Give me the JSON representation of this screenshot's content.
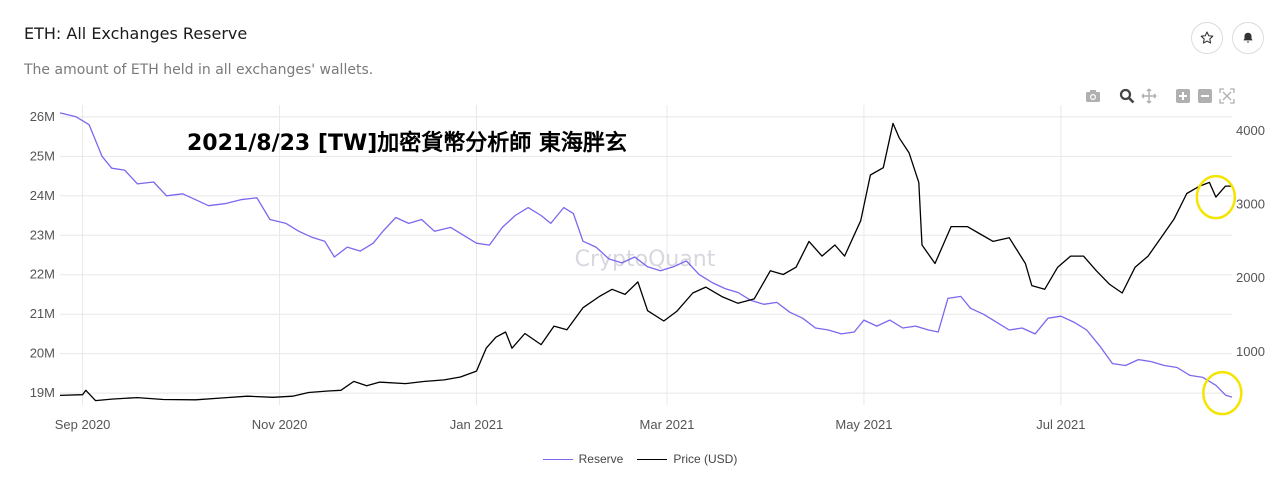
{
  "header": {
    "title": "ETH: All Exchanges Reserve",
    "subtitle": "The amount of ETH held in all exchanges' wallets.",
    "star_icon": "star-icon",
    "bell_icon": "bell-icon"
  },
  "modebar": {
    "icons": [
      "camera-icon",
      "zoom-icon",
      "pan-icon",
      "zoom-in-icon",
      "zoom-out-icon",
      "autoscale-icon"
    ]
  },
  "annotation": "2021/8/23 [TW]加密貨幣分析師 東海胖玄",
  "watermark": "CryptoQuant",
  "colors": {
    "reserve": "#7b68ee",
    "price": "#000000",
    "highlight": "#f5e400",
    "grid": "#e8e8e8"
  },
  "chart_data": {
    "type": "line",
    "x_range": [
      "2020-08-25",
      "2021-08-23"
    ],
    "x_ticks": [
      {
        "date": "2020-09-01",
        "label": "Sep 2020"
      },
      {
        "date": "2020-11-01",
        "label": "Nov 2020"
      },
      {
        "date": "2021-01-01",
        "label": "Jan 2021"
      },
      {
        "date": "2021-03-01",
        "label": "Mar 2021"
      },
      {
        "date": "2021-05-01",
        "label": "May 2021"
      },
      {
        "date": "2021-07-01",
        "label": "Jul 2021"
      }
    ],
    "y_left": {
      "range": [
        18700000,
        26300000
      ],
      "ticks": [
        {
          "v": 19000000,
          "label": "19M"
        },
        {
          "v": 20000000,
          "label": "20M"
        },
        {
          "v": 21000000,
          "label": "21M"
        },
        {
          "v": 22000000,
          "label": "22M"
        },
        {
          "v": 23000000,
          "label": "23M"
        },
        {
          "v": 24000000,
          "label": "24M"
        },
        {
          "v": 25000000,
          "label": "25M"
        },
        {
          "v": 26000000,
          "label": "26M"
        }
      ]
    },
    "y_right": {
      "range": [
        280,
        4350
      ],
      "ticks": [
        {
          "v": 1000,
          "label": "1000"
        },
        {
          "v": 2000,
          "label": "2000"
        },
        {
          "v": 3000,
          "label": "3000"
        },
        {
          "v": 4000,
          "label": "4000"
        }
      ]
    },
    "grid": true,
    "legend_position": "bottom-center",
    "series": [
      {
        "name": "Reserve",
        "axis": "left",
        "points": [
          [
            "2020-08-25",
            26100000
          ],
          [
            "2020-08-30",
            26000000
          ],
          [
            "2020-09-03",
            25800000
          ],
          [
            "2020-09-07",
            25000000
          ],
          [
            "2020-09-10",
            24700000
          ],
          [
            "2020-09-14",
            24650000
          ],
          [
            "2020-09-18",
            24300000
          ],
          [
            "2020-09-23",
            24350000
          ],
          [
            "2020-09-27",
            24000000
          ],
          [
            "2020-10-02",
            24050000
          ],
          [
            "2020-10-06",
            23900000
          ],
          [
            "2020-10-10",
            23750000
          ],
          [
            "2020-10-15",
            23800000
          ],
          [
            "2020-10-20",
            23900000
          ],
          [
            "2020-10-25",
            23950000
          ],
          [
            "2020-10-29",
            23400000
          ],
          [
            "2020-11-03",
            23300000
          ],
          [
            "2020-11-07",
            23100000
          ],
          [
            "2020-11-11",
            22950000
          ],
          [
            "2020-11-15",
            22850000
          ],
          [
            "2020-11-18",
            22450000
          ],
          [
            "2020-11-22",
            22700000
          ],
          [
            "2020-11-26",
            22600000
          ],
          [
            "2020-11-30",
            22800000
          ],
          [
            "2020-12-03",
            23100000
          ],
          [
            "2020-12-07",
            23450000
          ],
          [
            "2020-12-11",
            23300000
          ],
          [
            "2020-12-15",
            23400000
          ],
          [
            "2020-12-19",
            23100000
          ],
          [
            "2020-12-24",
            23200000
          ],
          [
            "2020-12-28",
            23000000
          ],
          [
            "2021-01-01",
            22800000
          ],
          [
            "2021-01-05",
            22750000
          ],
          [
            "2021-01-09",
            23200000
          ],
          [
            "2021-01-13",
            23500000
          ],
          [
            "2021-01-17",
            23700000
          ],
          [
            "2021-01-21",
            23500000
          ],
          [
            "2021-01-24",
            23300000
          ],
          [
            "2021-01-28",
            23700000
          ],
          [
            "2021-01-31",
            23550000
          ],
          [
            "2021-02-03",
            22850000
          ],
          [
            "2021-02-07",
            22700000
          ],
          [
            "2021-02-11",
            22400000
          ],
          [
            "2021-02-15",
            22300000
          ],
          [
            "2021-02-19",
            22450000
          ],
          [
            "2021-02-23",
            22200000
          ],
          [
            "2021-02-27",
            22100000
          ],
          [
            "2021-03-03",
            22200000
          ],
          [
            "2021-03-07",
            22350000
          ],
          [
            "2021-03-11",
            22000000
          ],
          [
            "2021-03-15",
            21800000
          ],
          [
            "2021-03-19",
            21650000
          ],
          [
            "2021-03-23",
            21550000
          ],
          [
            "2021-03-27",
            21350000
          ],
          [
            "2021-03-31",
            21250000
          ],
          [
            "2021-04-04",
            21300000
          ],
          [
            "2021-04-08",
            21050000
          ],
          [
            "2021-04-12",
            20900000
          ],
          [
            "2021-04-16",
            20650000
          ],
          [
            "2021-04-20",
            20600000
          ],
          [
            "2021-04-24",
            20500000
          ],
          [
            "2021-04-28",
            20550000
          ],
          [
            "2021-05-01",
            20850000
          ],
          [
            "2021-05-05",
            20700000
          ],
          [
            "2021-05-09",
            20850000
          ],
          [
            "2021-05-13",
            20650000
          ],
          [
            "2021-05-17",
            20700000
          ],
          [
            "2021-05-21",
            20600000
          ],
          [
            "2021-05-24",
            20550000
          ],
          [
            "2021-05-27",
            21400000
          ],
          [
            "2021-05-31",
            21450000
          ],
          [
            "2021-06-03",
            21150000
          ],
          [
            "2021-06-07",
            21000000
          ],
          [
            "2021-06-11",
            20800000
          ],
          [
            "2021-06-15",
            20600000
          ],
          [
            "2021-06-19",
            20650000
          ],
          [
            "2021-06-23",
            20500000
          ],
          [
            "2021-06-27",
            20900000
          ],
          [
            "2021-07-01",
            20950000
          ],
          [
            "2021-07-05",
            20800000
          ],
          [
            "2021-07-09",
            20600000
          ],
          [
            "2021-07-13",
            20200000
          ],
          [
            "2021-07-17",
            19750000
          ],
          [
            "2021-07-21",
            19700000
          ],
          [
            "2021-07-25",
            19850000
          ],
          [
            "2021-07-29",
            19800000
          ],
          [
            "2021-08-02",
            19700000
          ],
          [
            "2021-08-06",
            19650000
          ],
          [
            "2021-08-10",
            19450000
          ],
          [
            "2021-08-14",
            19400000
          ],
          [
            "2021-08-18",
            19200000
          ],
          [
            "2021-08-21",
            18950000
          ],
          [
            "2021-08-23",
            18900000
          ]
        ]
      },
      {
        "name": "Price (USD)",
        "axis": "right",
        "points": [
          [
            "2020-08-25",
            410
          ],
          [
            "2020-09-01",
            420
          ],
          [
            "2020-09-02",
            480
          ],
          [
            "2020-09-05",
            340
          ],
          [
            "2020-09-10",
            360
          ],
          [
            "2020-09-18",
            380
          ],
          [
            "2020-09-26",
            355
          ],
          [
            "2020-10-06",
            350
          ],
          [
            "2020-10-14",
            375
          ],
          [
            "2020-10-22",
            400
          ],
          [
            "2020-10-30",
            385
          ],
          [
            "2020-11-05",
            400
          ],
          [
            "2020-11-10",
            450
          ],
          [
            "2020-11-16",
            470
          ],
          [
            "2020-11-20",
            480
          ],
          [
            "2020-11-24",
            600
          ],
          [
            "2020-11-28",
            540
          ],
          [
            "2020-12-02",
            590
          ],
          [
            "2020-12-10",
            570
          ],
          [
            "2020-12-16",
            600
          ],
          [
            "2020-12-22",
            620
          ],
          [
            "2020-12-27",
            660
          ],
          [
            "2021-01-01",
            740
          ],
          [
            "2021-01-04",
            1050
          ],
          [
            "2021-01-07",
            1200
          ],
          [
            "2021-01-10",
            1270
          ],
          [
            "2021-01-12",
            1050
          ],
          [
            "2021-01-16",
            1250
          ],
          [
            "2021-01-21",
            1100
          ],
          [
            "2021-01-25",
            1350
          ],
          [
            "2021-01-29",
            1300
          ],
          [
            "2021-02-03",
            1600
          ],
          [
            "2021-02-08",
            1750
          ],
          [
            "2021-02-12",
            1850
          ],
          [
            "2021-02-16",
            1780
          ],
          [
            "2021-02-20",
            1950
          ],
          [
            "2021-02-23",
            1560
          ],
          [
            "2021-02-28",
            1420
          ],
          [
            "2021-03-04",
            1550
          ],
          [
            "2021-03-09",
            1800
          ],
          [
            "2021-03-13",
            1880
          ],
          [
            "2021-03-18",
            1750
          ],
          [
            "2021-03-23",
            1660
          ],
          [
            "2021-03-28",
            1720
          ],
          [
            "2021-04-02",
            2100
          ],
          [
            "2021-04-06",
            2050
          ],
          [
            "2021-04-10",
            2150
          ],
          [
            "2021-04-14",
            2500
          ],
          [
            "2021-04-18",
            2300
          ],
          [
            "2021-04-22",
            2450
          ],
          [
            "2021-04-25",
            2300
          ],
          [
            "2021-04-30",
            2780
          ],
          [
            "2021-05-03",
            3400
          ],
          [
            "2021-05-07",
            3500
          ],
          [
            "2021-05-10",
            4100
          ],
          [
            "2021-05-12",
            3900
          ],
          [
            "2021-05-15",
            3700
          ],
          [
            "2021-05-18",
            3300
          ],
          [
            "2021-05-19",
            2450
          ],
          [
            "2021-05-23",
            2200
          ],
          [
            "2021-05-28",
            2700
          ],
          [
            "2021-06-02",
            2700
          ],
          [
            "2021-06-06",
            2600
          ],
          [
            "2021-06-10",
            2500
          ],
          [
            "2021-06-15",
            2550
          ],
          [
            "2021-06-20",
            2200
          ],
          [
            "2021-06-22",
            1900
          ],
          [
            "2021-06-26",
            1850
          ],
          [
            "2021-06-30",
            2150
          ],
          [
            "2021-07-04",
            2300
          ],
          [
            "2021-07-08",
            2300
          ],
          [
            "2021-07-12",
            2100
          ],
          [
            "2021-07-16",
            1920
          ],
          [
            "2021-07-20",
            1800
          ],
          [
            "2021-07-24",
            2150
          ],
          [
            "2021-07-28",
            2300
          ],
          [
            "2021-08-01",
            2550
          ],
          [
            "2021-08-05",
            2800
          ],
          [
            "2021-08-09",
            3150
          ],
          [
            "2021-08-13",
            3250
          ],
          [
            "2021-08-16",
            3300
          ],
          [
            "2021-08-18",
            3100
          ],
          [
            "2021-08-21",
            3250
          ],
          [
            "2021-08-23",
            3250
          ]
        ]
      }
    ],
    "highlights": [
      {
        "series": "Price (USD)",
        "date": "2021-08-18",
        "value": 3100
      },
      {
        "series": "Reserve",
        "date": "2021-08-20",
        "value": 19000000
      }
    ]
  }
}
